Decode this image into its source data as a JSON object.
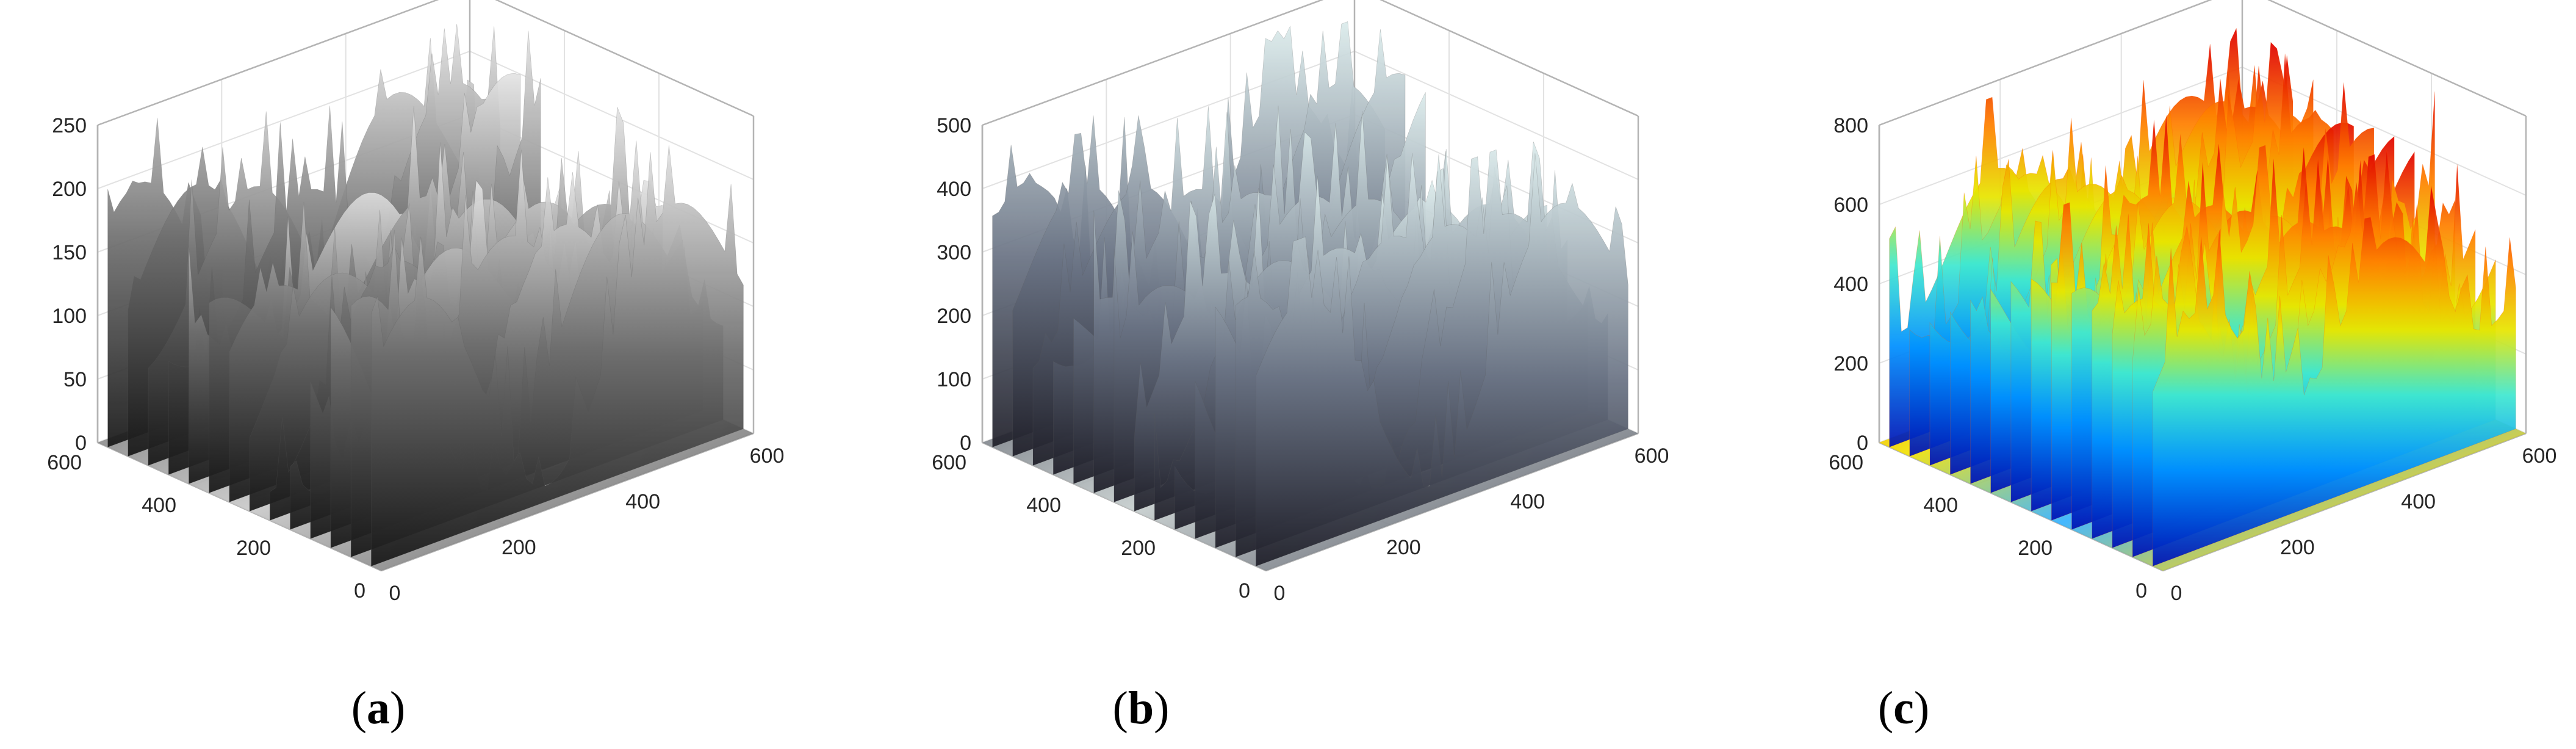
{
  "chart_data": [
    {
      "type": "surface3d",
      "panel_label": "a",
      "colormap": "gray",
      "x_ticks": [
        0,
        200,
        400,
        600
      ],
      "y_ticks": [
        0,
        200,
        400,
        600
      ],
      "z_ticks": [
        0,
        50,
        100,
        150,
        200,
        250
      ],
      "xlim": [
        0,
        600
      ],
      "ylim": [
        0,
        600
      ],
      "zlim": [
        0,
        250
      ],
      "grid": true,
      "base_image_projection": true
    },
    {
      "type": "surface3d",
      "panel_label": "b",
      "colormap": "bone",
      "x_ticks": [
        0,
        200,
        400,
        600
      ],
      "y_ticks": [
        0,
        200,
        400,
        600
      ],
      "z_ticks": [
        0,
        100,
        200,
        300,
        400,
        500
      ],
      "xlim": [
        0,
        600
      ],
      "ylim": [
        0,
        600
      ],
      "zlim": [
        0,
        500
      ],
      "grid": true,
      "base_image_projection": true
    },
    {
      "type": "surface3d",
      "panel_label": "c",
      "colormap": "jet",
      "x_ticks": [
        0,
        200,
        400,
        600
      ],
      "y_ticks": [
        0,
        200,
        400,
        600
      ],
      "z_ticks": [
        0,
        200,
        400,
        600,
        800
      ],
      "xlim": [
        0,
        600
      ],
      "ylim": [
        0,
        600
      ],
      "zlim": [
        0,
        800
      ],
      "grid": true,
      "base_image_projection": true
    }
  ],
  "colors": {
    "axis_line": "#b4b4b4",
    "grid_line": "#e2e2e2",
    "gray_low": "#1c1c1c",
    "gray_high": "#e6e6e6",
    "bone_low": "#23232e",
    "bone_high": "#dceaea",
    "jet_low": "#0016c8",
    "jet_mid": "#e6e600",
    "jet_high": "#e00000"
  }
}
